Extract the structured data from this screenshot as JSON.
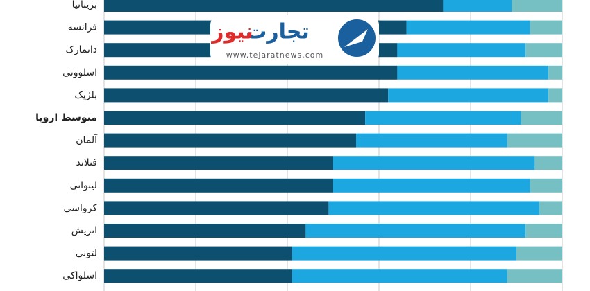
{
  "chart_data": {
    "type": "stacked-barh",
    "categories": [
      "بریتانیا",
      "فرانسه",
      "دانمارک",
      "اسلوونی",
      "بلژیک",
      "متوسط اروپا",
      "آلمان",
      "فنلاند",
      "لیتوانی",
      "کرواسی",
      "اتریش",
      "لتونی",
      "اسلواکی"
    ],
    "highlight": 5,
    "series": [
      {
        "color": "#0d4f6e",
        "values": [
          74,
          66,
          64,
          64,
          62,
          57,
          55,
          50,
          50,
          49,
          44,
          41,
          41
        ]
      },
      {
        "color": "#1ca7e0",
        "values": [
          15,
          27,
          28,
          33,
          35,
          34,
          33,
          44,
          43,
          46,
          48,
          49,
          47
        ]
      },
      {
        "color": "#76bfc2",
        "values": [
          11,
          7,
          8,
          3,
          3,
          9,
          12,
          6,
          7,
          5,
          8,
          10,
          12
        ]
      }
    ],
    "xlim": [
      0,
      100
    ],
    "xticks": [
      0,
      20,
      40,
      60,
      80,
      100
    ],
    "grid": true
  },
  "watermark": {
    "brand_dark": "تجارت",
    "brand_red": "نیوز",
    "url": "www.tejaratnews.com"
  }
}
